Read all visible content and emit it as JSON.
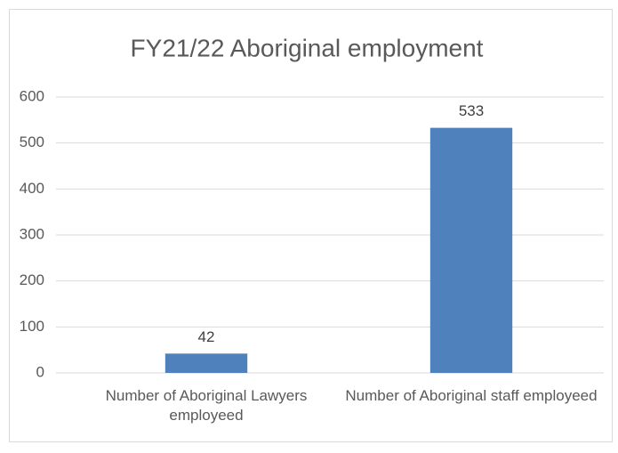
{
  "chart_data": {
    "type": "bar",
    "title": "FY21/22 Aboriginal employment",
    "categories": [
      "Number of Aboriginal Lawyers employeed",
      "Number of Aboriginal staff employeed"
    ],
    "values": [
      42,
      533
    ],
    "color": "#4f81bd",
    "ylim": [
      0,
      600
    ],
    "yticks": [
      0,
      100,
      200,
      300,
      400,
      500,
      600
    ],
    "grid": true
  }
}
